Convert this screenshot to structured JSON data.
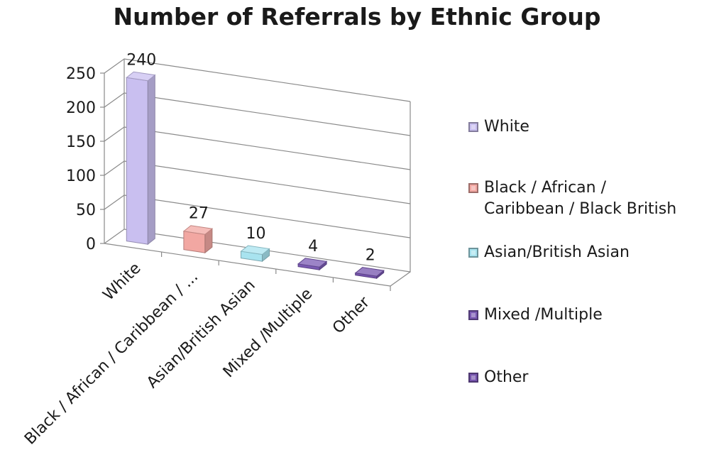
{
  "chart_data": {
    "type": "bar",
    "title": "Number of Referrals by Ethnic Group",
    "xlabel": "",
    "ylabel": "",
    "ylim": [
      0,
      250
    ],
    "yticks": [
      0,
      50,
      100,
      150,
      200,
      250
    ],
    "categories": [
      "White",
      "Black / African / Caribbean / Black British",
      "Asian/British Asian",
      "Mixed /Multiple",
      "Other"
    ],
    "tick_labels": [
      "White",
      "Black / African / Caribbean / ...",
      "Asian/British Asian",
      "Mixed /Multiple",
      "Other"
    ],
    "values": [
      240,
      27,
      10,
      4,
      2
    ],
    "data_labels": [
      "240",
      "27",
      "10",
      "4",
      "2"
    ],
    "colors": [
      "#c9bff0",
      "#f2a7a2",
      "#a8e3ef",
      "#7b5bb4",
      "#7654ad"
    ],
    "legend": {
      "position": "right",
      "entries": [
        "White",
        "Black / African /\nCaribbean / Black British",
        "Asian/British Asian",
        "Mixed /Multiple",
        "Other"
      ]
    },
    "grid": true,
    "style": "3d"
  }
}
